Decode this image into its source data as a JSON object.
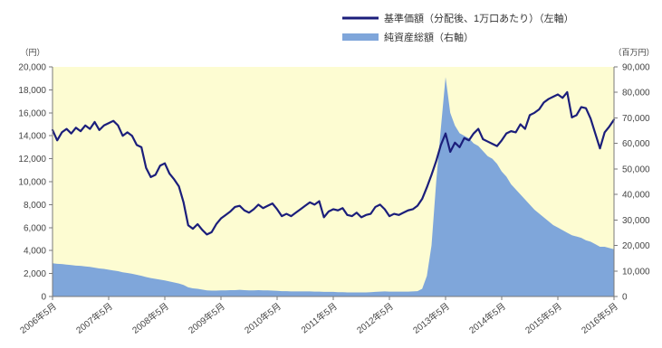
{
  "chart_data": {
    "type": "line",
    "legend_position": "top-right",
    "grid": false,
    "plot_background": "#fdfcd2",
    "x": [
      "2006-05",
      "2006-06",
      "2006-07",
      "2006-08",
      "2006-09",
      "2006-10",
      "2006-11",
      "2006-12",
      "2007-01",
      "2007-02",
      "2007-03",
      "2007-04",
      "2007-05",
      "2007-06",
      "2007-07",
      "2007-08",
      "2007-09",
      "2007-10",
      "2007-11",
      "2007-12",
      "2008-01",
      "2008-02",
      "2008-03",
      "2008-04",
      "2008-05",
      "2008-06",
      "2008-07",
      "2008-08",
      "2008-09",
      "2008-10",
      "2008-11",
      "2008-12",
      "2009-01",
      "2009-02",
      "2009-03",
      "2009-04",
      "2009-05",
      "2009-06",
      "2009-07",
      "2009-08",
      "2009-09",
      "2009-10",
      "2009-11",
      "2009-12",
      "2010-01",
      "2010-02",
      "2010-03",
      "2010-04",
      "2010-05",
      "2010-06",
      "2010-07",
      "2010-08",
      "2010-09",
      "2010-10",
      "2010-11",
      "2010-12",
      "2011-01",
      "2011-02",
      "2011-03",
      "2011-04",
      "2011-05",
      "2011-06",
      "2011-07",
      "2011-08",
      "2011-09",
      "2011-10",
      "2011-11",
      "2011-12",
      "2012-01",
      "2012-02",
      "2012-03",
      "2012-04",
      "2012-05",
      "2012-06",
      "2012-07",
      "2012-08",
      "2012-09",
      "2012-10",
      "2012-11",
      "2012-12",
      "2013-01",
      "2013-02",
      "2013-03",
      "2013-04",
      "2013-05",
      "2013-06",
      "2013-07",
      "2013-08",
      "2013-09",
      "2013-10",
      "2013-11",
      "2013-12",
      "2014-01",
      "2014-02",
      "2014-03",
      "2014-04",
      "2014-05",
      "2014-06",
      "2014-07",
      "2014-08",
      "2014-09",
      "2014-10",
      "2014-11",
      "2014-12",
      "2015-01",
      "2015-02",
      "2015-03",
      "2015-04",
      "2015-05",
      "2015-06",
      "2015-07",
      "2015-08",
      "2015-09",
      "2015-10",
      "2015-11",
      "2015-12",
      "2016-01",
      "2016-02",
      "2016-03",
      "2016-04",
      "2016-05"
    ],
    "x_tick_labels": [
      "2006年5月",
      "2007年5月",
      "2008年5月",
      "2009年5月",
      "2010年5月",
      "2011年5月",
      "2012年5月",
      "2013年5月",
      "2014年5月",
      "2015年5月",
      "2016年5月"
    ],
    "y_left": {
      "unit_label": "（円）",
      "range": [
        0,
        20000
      ],
      "tick_labels": [
        "0",
        "2,000",
        "4,000",
        "6,000",
        "8,000",
        "10,000",
        "12,000",
        "14,000",
        "16,000",
        "18,000",
        "20,000"
      ]
    },
    "y_right": {
      "unit_label": "（百万円）",
      "range": [
        0,
        90000
      ],
      "tick_labels": [
        "0",
        "10,000",
        "20,000",
        "30,000",
        "40,000",
        "50,000",
        "60,000",
        "70,000",
        "80,000",
        "90,000"
      ]
    },
    "series": [
      {
        "name": "基準価額（分配後、1万口あたり）（左軸）",
        "type": "line",
        "axis": "left",
        "color": "#1b1e7b",
        "values": [
          14500,
          13600,
          14300,
          14600,
          14200,
          14700,
          14400,
          14900,
          14600,
          15200,
          14500,
          14900,
          15100,
          15300,
          14900,
          14000,
          14300,
          14000,
          13200,
          13000,
          11200,
          10400,
          10600,
          11400,
          11600,
          10700,
          10200,
          9600,
          8200,
          6200,
          5900,
          6300,
          5800,
          5400,
          5600,
          6300,
          6800,
          7100,
          7400,
          7800,
          7900,
          7500,
          7300,
          7600,
          8000,
          7700,
          7900,
          8100,
          7600,
          7000,
          7200,
          7000,
          7300,
          7600,
          7900,
          8200,
          8000,
          8300,
          6900,
          7400,
          7600,
          7500,
          7700,
          7100,
          7000,
          7300,
          6900,
          7100,
          7200,
          7800,
          8000,
          7600,
          7000,
          7200,
          7100,
          7300,
          7500,
          7600,
          7900,
          8500,
          9500,
          10600,
          11800,
          13200,
          14200,
          12600,
          13400,
          13000,
          13800,
          13600,
          14200,
          14600,
          13700,
          13500,
          13300,
          13100,
          13600,
          14200,
          14400,
          14300,
          15000,
          14600,
          15800,
          16000,
          16300,
          16900,
          17200,
          17400,
          17600,
          17300,
          17800,
          15600,
          15800,
          16500,
          16400,
          15500,
          14200,
          12900,
          14300,
          14800,
          15400
        ]
      },
      {
        "name": "純資産総額（右軸）",
        "type": "area",
        "axis": "right",
        "color": "#7fa6da",
        "values": [
          13000,
          12800,
          12700,
          12500,
          12300,
          12100,
          12000,
          11800,
          11600,
          11300,
          11000,
          10800,
          10500,
          10200,
          9900,
          9500,
          9200,
          8900,
          8500,
          8100,
          7600,
          7200,
          6900,
          6600,
          6300,
          5900,
          5500,
          5100,
          4500,
          3600,
          3200,
          3000,
          2700,
          2400,
          2300,
          2300,
          2400,
          2400,
          2500,
          2500,
          2600,
          2500,
          2400,
          2400,
          2500,
          2400,
          2400,
          2300,
          2200,
          2100,
          2100,
          2000,
          2000,
          2000,
          2000,
          2000,
          1900,
          1900,
          1800,
          1800,
          1800,
          1700,
          1700,
          1600,
          1600,
          1600,
          1600,
          1600,
          1700,
          1800,
          1900,
          2000,
          1900,
          1900,
          1900,
          1900,
          1900,
          2000,
          2100,
          3000,
          8000,
          20000,
          45000,
          66000,
          86000,
          72000,
          67000,
          64000,
          63000,
          62000,
          60000,
          59000,
          57000,
          55000,
          54000,
          52000,
          49000,
          47000,
          44000,
          42000,
          40000,
          38000,
          36000,
          34000,
          32500,
          31000,
          29500,
          28000,
          27000,
          26000,
          25000,
          24000,
          23500,
          23000,
          22000,
          21500,
          20500,
          19500,
          19500,
          19000,
          18500
        ]
      }
    ]
  }
}
